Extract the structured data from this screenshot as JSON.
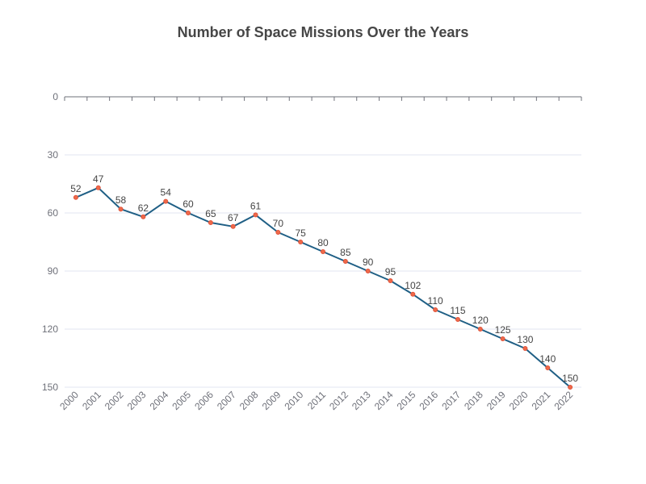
{
  "chart_data": {
    "type": "line",
    "title": "Number of Space Missions Over the Years",
    "xlabel": "",
    "ylabel": "",
    "y_inverted": true,
    "ylim": [
      0,
      150
    ],
    "y_ticks": [
      0,
      30,
      60,
      90,
      120,
      150
    ],
    "grid": true,
    "categories": [
      "2000",
      "2001",
      "2002",
      "2003",
      "2004",
      "2005",
      "2006",
      "2007",
      "2008",
      "2009",
      "2010",
      "2011",
      "2012",
      "2013",
      "2014",
      "2015",
      "2016",
      "2017",
      "2018",
      "2019",
      "2020",
      "2021",
      "2022"
    ],
    "series": [
      {
        "values": [
          52,
          47,
          58,
          62,
          54,
          60,
          65,
          67,
          61,
          70,
          75,
          80,
          85,
          90,
          95,
          102,
          110,
          115,
          120,
          125,
          130,
          140,
          150
        ]
      }
    ],
    "colors": {
      "line": "#1f5f85",
      "marker_fill": "#ee6a4a",
      "marker_stroke": "#e0523a",
      "grid": "#e0e6f1",
      "axis": "#6e7079"
    }
  }
}
